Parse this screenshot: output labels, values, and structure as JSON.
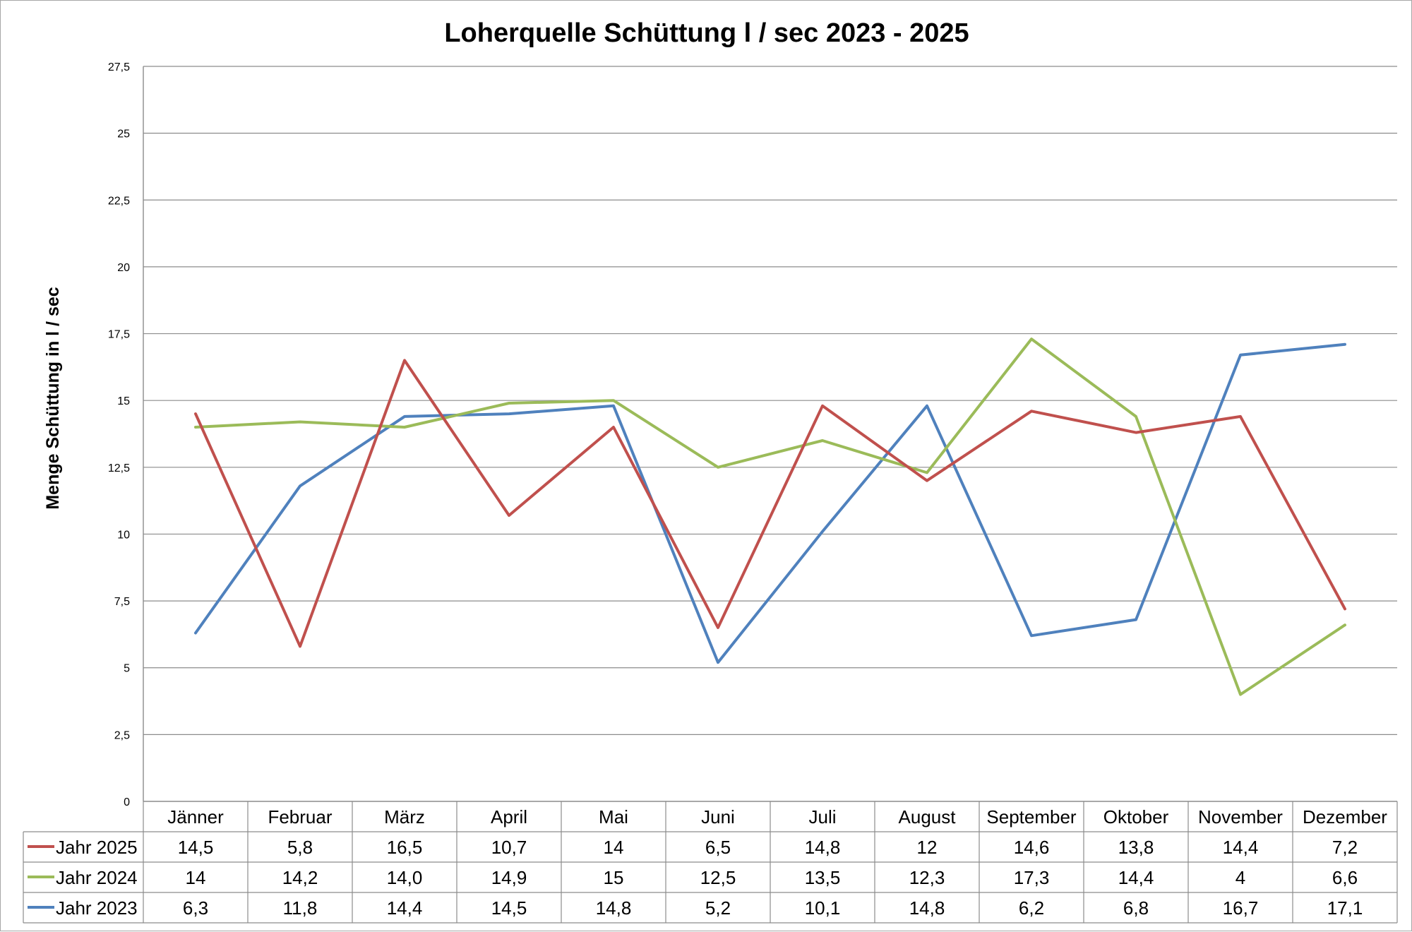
{
  "chart_data": {
    "type": "line",
    "title": "Loherquelle Schüttung l / sec 2023 - 2025",
    "ylabel": "Menge Schüttung in l / sec",
    "xlabel": "",
    "ylim": [
      0,
      27.5
    ],
    "yticks": [
      {
        "value": 0,
        "label": "0"
      },
      {
        "value": 2.5,
        "label": "2,5"
      },
      {
        "value": 5,
        "label": "5"
      },
      {
        "value": 7.5,
        "label": "7,5"
      },
      {
        "value": 10,
        "label": "10"
      },
      {
        "value": 12.5,
        "label": "12,5"
      },
      {
        "value": 15,
        "label": "15"
      },
      {
        "value": 17.5,
        "label": "17,5"
      },
      {
        "value": 20,
        "label": "20"
      },
      {
        "value": 22.5,
        "label": "22,5"
      },
      {
        "value": 25,
        "label": "25"
      },
      {
        "value": 27.5,
        "label": "27,5"
      }
    ],
    "grid": true,
    "legend": "data-table-below",
    "categories": [
      "Jänner",
      "Februar",
      "März",
      "April",
      "Mai",
      "Juni",
      "Juli",
      "August",
      "September",
      "Oktober",
      "November",
      "Dezember"
    ],
    "series": [
      {
        "name": "Jahr 2025",
        "color": "#c0504d",
        "values": [
          14.5,
          5.8,
          16.5,
          10.7,
          14,
          6.5,
          14.8,
          12,
          14.6,
          13.8,
          14.4,
          7.2
        ],
        "labels": [
          "14,5",
          "5,8",
          "16,5",
          "10,7",
          "14",
          "6,5",
          "14,8",
          "12",
          "14,6",
          "13,8",
          "14,4",
          "7,2"
        ]
      },
      {
        "name": "Jahr 2024",
        "color": "#9bbb59",
        "values": [
          14,
          14.2,
          14.0,
          14.9,
          15,
          12.5,
          13.5,
          12.3,
          17.3,
          14.4,
          4,
          6.6
        ],
        "labels": [
          "14",
          "14,2",
          "14,0",
          "14,9",
          "15",
          "12,5",
          "13,5",
          "12,3",
          "17,3",
          "14,4",
          "4",
          "6,6"
        ]
      },
      {
        "name": "Jahr 2023",
        "color": "#4f81bd",
        "values": [
          6.3,
          11.8,
          14.4,
          14.5,
          14.8,
          5.2,
          10.1,
          14.8,
          6.2,
          6.8,
          16.7,
          17.1
        ],
        "labels": [
          "6,3",
          "11,8",
          "14,4",
          "14,5",
          "14,8",
          "5,2",
          "10,1",
          "14,8",
          "6,2",
          "6,8",
          "16,7",
          "17,1"
        ]
      }
    ]
  }
}
